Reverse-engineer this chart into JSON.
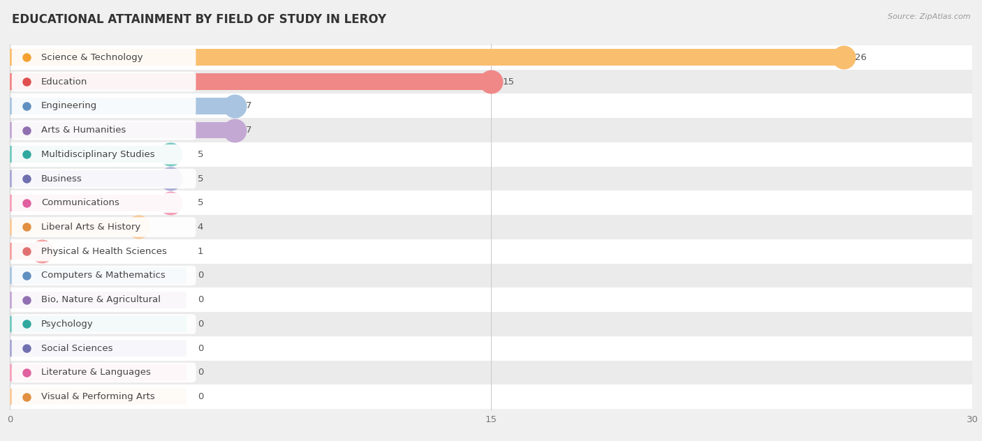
{
  "title": "EDUCATIONAL ATTAINMENT BY FIELD OF STUDY IN LEROY",
  "source": "Source: ZipAtlas.com",
  "categories": [
    "Science & Technology",
    "Education",
    "Engineering",
    "Arts & Humanities",
    "Multidisciplinary Studies",
    "Business",
    "Communications",
    "Liberal Arts & History",
    "Physical & Health Sciences",
    "Computers & Mathematics",
    "Bio, Nature & Agricultural",
    "Psychology",
    "Social Sciences",
    "Literature & Languages",
    "Visual & Performing Arts"
  ],
  "values": [
    26,
    15,
    7,
    7,
    5,
    5,
    5,
    4,
    1,
    0,
    0,
    0,
    0,
    0,
    0
  ],
  "bar_colors": [
    "#F9BE6E",
    "#F08888",
    "#A8C4E0",
    "#C4A8D4",
    "#76C8C0",
    "#A8A8D4",
    "#F4A0B8",
    "#F9C898",
    "#F4A0A0",
    "#A8C4E0",
    "#C4A8D4",
    "#76C8C0",
    "#A8A8D4",
    "#F4A0B8",
    "#F9C898"
  ],
  "dot_colors": [
    "#F5A030",
    "#E05050",
    "#6090C0",
    "#9070B0",
    "#30A8A0",
    "#7070B0",
    "#E060A0",
    "#E09040",
    "#E07070",
    "#6090C0",
    "#9070B0",
    "#30A8A0",
    "#7070B0",
    "#E060A0",
    "#E09040"
  ],
  "row_colors": [
    "#ffffff",
    "#ebebeb"
  ],
  "xlim": [
    0,
    30
  ],
  "xticks": [
    0,
    15,
    30
  ],
  "background_color": "#f0f0f0",
  "title_fontsize": 12,
  "label_fontsize": 9.5,
  "value_fontsize": 9.5
}
